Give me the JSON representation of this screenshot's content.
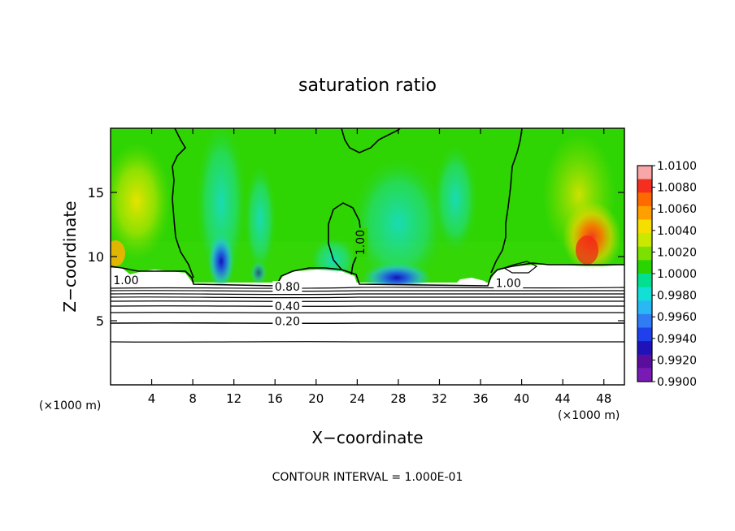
{
  "chart_data": {
    "type": "heatmap",
    "title": "saturation ratio",
    "xlabel": "X−coordinate",
    "ylabel": "Z−coordinate",
    "x_units": "(×1000 m)",
    "z_units": "(×1000 m)",
    "xlim": [
      0,
      50
    ],
    "ylim": [
      0,
      20
    ],
    "x_ticks": [
      4,
      8,
      12,
      16,
      20,
      24,
      28,
      32,
      36,
      40,
      44,
      48
    ],
    "y_ticks": [
      5,
      10,
      15
    ],
    "colorbar": {
      "min": 0.99,
      "max": 1.01,
      "tick_labels": [
        "1.0100",
        "1.0080",
        "1.0060",
        "1.0040",
        "1.0020",
        "1.0000",
        "0.9980",
        "0.9960",
        "0.9940",
        "0.9920",
        "0.9900"
      ],
      "colors": [
        "#f7a7a7",
        "#f42f1f",
        "#ff6a00",
        "#ffa000",
        "#f6df00",
        "#cbe800",
        "#7ee000",
        "#29d400",
        "#00e090",
        "#12e0d6",
        "#29b8f4",
        "#2f7cf4",
        "#2040ec",
        "#1e12b8",
        "#5a0e9e",
        "#7a1ab4"
      ]
    },
    "contour_labels": [
      {
        "text": "1.00",
        "x": 1.5,
        "z": 7.9
      },
      {
        "text": "1.00",
        "x": 24.3,
        "z": 11.1
      },
      {
        "text": "1.00",
        "x": 38.7,
        "z": 7.7
      },
      {
        "text": "0.80",
        "x": 17.2,
        "z": 7.4
      },
      {
        "text": "0.40",
        "x": 17.2,
        "z": 5.9
      },
      {
        "text": "0.20",
        "x": 17.2,
        "z": 4.7
      }
    ],
    "contour_levels_below_cloud": [
      0.2,
      0.3,
      0.4,
      0.5,
      0.6,
      0.7,
      0.8,
      0.9
    ],
    "footer": "CONTOUR INTERVAL = 1.000E-01"
  }
}
